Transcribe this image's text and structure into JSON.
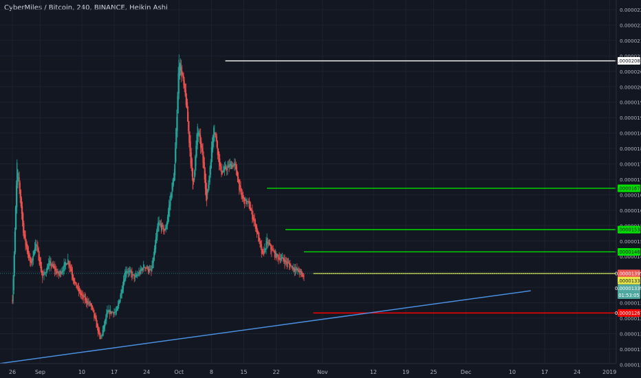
{
  "chart_data": {
    "type": "candlestick",
    "title": "CyberMiles / Bitcoin, 240, BINANCE, Heikin Ashi",
    "y_ticks": [
      "0.00002250",
      "0.00002200",
      "0.00002150",
      "0.00002100",
      "0.00002050",
      "0.00002000",
      "0.00001950",
      "0.00001900",
      "0.00001850",
      "0.00001800",
      "0.00001750",
      "0.00001700",
      "0.00001650",
      "0.00001600",
      "0.00001550",
      "0.00001500",
      "0.00001450",
      "0.00001400",
      "0.00001350",
      "0.00001300",
      "0.00001250",
      "0.00001200",
      "0.00001150",
      "0.00001100"
    ],
    "x_ticks": [
      "26",
      "Sep",
      "10",
      "17",
      "24",
      "Oct",
      "8",
      "15",
      "22",
      "Nov",
      "12",
      "19",
      "25",
      "Dec",
      "10",
      "17",
      "24",
      "2019"
    ],
    "ylim": [
      1.1e-05,
      2.25e-05
    ],
    "series_path": [
      {
        "day": 0,
        "price": 1.31e-05
      },
      {
        "day": 1,
        "price": 1.75e-05
      },
      {
        "day": 2.5,
        "price": 1.51e-05
      },
      {
        "day": 4,
        "price": 1.42e-05
      },
      {
        "day": 5,
        "price": 1.5e-05
      },
      {
        "day": 6.5,
        "price": 1.38e-05
      },
      {
        "day": 8,
        "price": 1.43e-05
      },
      {
        "day": 10,
        "price": 1.39e-05
      },
      {
        "day": 12,
        "price": 1.44e-05
      },
      {
        "day": 13.5,
        "price": 1.36e-05
      },
      {
        "day": 15,
        "price": 1.32e-05
      },
      {
        "day": 17,
        "price": 1.29e-05
      },
      {
        "day": 19,
        "price": 1.18e-05
      },
      {
        "day": 20.5,
        "price": 1.27e-05
      },
      {
        "day": 22.5,
        "price": 1.27e-05
      },
      {
        "day": 24.5,
        "price": 1.41e-05
      },
      {
        "day": 26.5,
        "price": 1.38e-05
      },
      {
        "day": 28.5,
        "price": 1.42e-05
      },
      {
        "day": 30,
        "price": 1.4e-05
      },
      {
        "day": 31.5,
        "price": 1.56e-05
      },
      {
        "day": 33,
        "price": 1.53e-05
      },
      {
        "day": 35,
        "price": 1.73e-05
      },
      {
        "day": 36,
        "price": 2.1e-05
      },
      {
        "day": 37.5,
        "price": 1.95e-05
      },
      {
        "day": 39,
        "price": 1.67e-05
      },
      {
        "day": 40,
        "price": 1.87e-05
      },
      {
        "day": 41,
        "price": 1.78e-05
      },
      {
        "day": 42,
        "price": 1.63e-05
      },
      {
        "day": 43.5,
        "price": 1.88e-05
      },
      {
        "day": 45,
        "price": 1.72e-05
      },
      {
        "day": 46.5,
        "price": 1.74e-05
      },
      {
        "day": 48,
        "price": 1.75e-05
      },
      {
        "day": 49.5,
        "price": 1.64e-05
      },
      {
        "day": 51,
        "price": 1.62e-05
      },
      {
        "day": 52.5,
        "price": 1.55e-05
      },
      {
        "day": 54,
        "price": 1.45e-05
      },
      {
        "day": 55,
        "price": 1.5e-05
      },
      {
        "day": 56,
        "price": 1.47e-05
      },
      {
        "day": 57,
        "price": 1.45e-05
      },
      {
        "day": 58.5,
        "price": 1.44e-05
      },
      {
        "day": 60,
        "price": 1.42e-05
      },
      {
        "day": 62,
        "price": 1.4e-05
      },
      {
        "day": 63,
        "price": 1.38e-05
      }
    ],
    "trendline": {
      "start": {
        "day": -4.3,
        "price": 1.1e-05
      },
      "end": {
        "day": 112,
        "price": 1.339e-05
      }
    },
    "horizontal_levels": [
      {
        "price": 2.084e-05,
        "label": "0.00002084",
        "color": "#ffffff",
        "label_bg": "#ffffff",
        "label_color": "#131722",
        "start_day": 46
      },
      {
        "price": 1.671e-05,
        "label": "0.00001671",
        "color": "#00e000",
        "label_bg": "#00e000",
        "label_color": "#131722",
        "start_day": 55
      },
      {
        "price": 1.537e-05,
        "label": "0.00001537",
        "color": "#00e000",
        "label_bg": "#00e000",
        "label_color": "#131722",
        "start_day": 59
      },
      {
        "price": 1.465e-05,
        "label": "0.00001465",
        "color": "#00e000",
        "label_bg": "#00e000",
        "label_color": "#131722",
        "start_day": 63
      },
      {
        "price": 1.395e-05,
        "label": "0.00001395",
        "color": "#e8e84a",
        "label_bg": "#ef5350",
        "label_color": "#ffffff",
        "start_day": 65
      },
      {
        "price": 1.267e-05,
        "label": "0.00001267",
        "color": "#ff0000",
        "label_bg": "#ff0000",
        "label_color": "#ffffff",
        "start_day": 65
      }
    ],
    "last_price_line": {
      "price": 1.395e-05
    },
    "right_axis_badges": [
      {
        "label": "0.00001339",
        "bg": "#e8e84a",
        "color": "#131722",
        "price": 1.372e-05
      },
      {
        "label": "0.00001339",
        "bg": "#4fa8a0",
        "color": "#ffffff",
        "price": 1.347e-05
      },
      {
        "label": "01:53:05",
        "bg": "#4fa8a0",
        "color": "#ffffff",
        "price": 1.325e-05
      }
    ]
  }
}
